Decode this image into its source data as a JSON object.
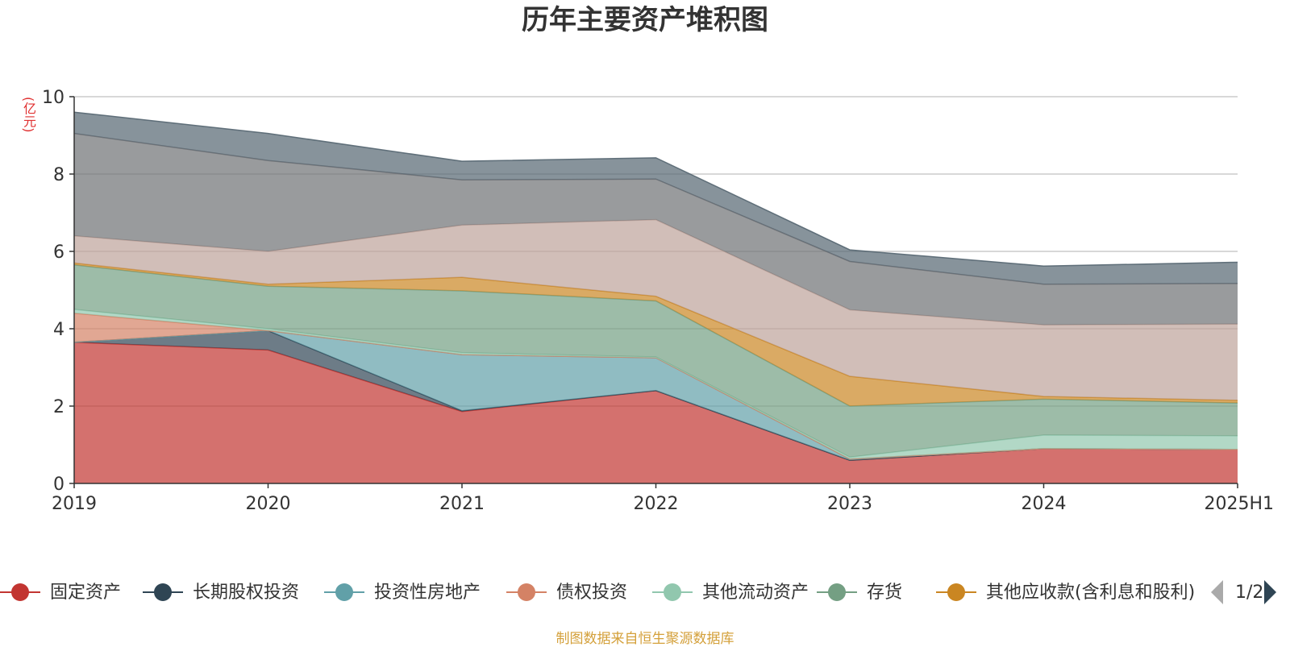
{
  "chart_data": {
    "type": "area",
    "stacked": true,
    "title": "历年主要资产堆积图",
    "y_unit": "(亿元)",
    "categories": [
      "2019",
      "2020",
      "2021",
      "2022",
      "2023",
      "2024",
      "2025H1"
    ],
    "ylim": [
      0,
      10
    ],
    "yticks": [
      0,
      2,
      4,
      6,
      8,
      10
    ],
    "grid": true,
    "legend_position": "bottom",
    "series": [
      {
        "name": "固定资产",
        "color": "#c23531",
        "values": [
          3.65,
          3.45,
          1.86,
          2.4,
          0.6,
          0.9,
          0.88
        ],
        "in_legend": true
      },
      {
        "name": "长期股权投资",
        "color": "#2f4554",
        "values": [
          0.0,
          0.5,
          0.02,
          0.0,
          0.0,
          0.0,
          0.0
        ],
        "in_legend": true
      },
      {
        "name": "投资性房地产",
        "color": "#61a0a8",
        "values": [
          0.0,
          0.0,
          1.45,
          0.85,
          0.03,
          0.0,
          0.0
        ],
        "in_legend": true
      },
      {
        "name": "债权投资",
        "color": "#d48265",
        "values": [
          0.75,
          0.0,
          0.0,
          0.0,
          0.0,
          0.0,
          0.0
        ],
        "in_legend": true
      },
      {
        "name": "其他流动资产",
        "color": "#91c7ae",
        "values": [
          0.1,
          0.05,
          0.05,
          0.02,
          0.05,
          0.35,
          0.35
        ],
        "in_legend": true
      },
      {
        "name": "存货",
        "color": "#749f83",
        "values": [
          1.15,
          1.1,
          1.6,
          1.45,
          1.32,
          0.93,
          0.85
        ],
        "in_legend": true
      },
      {
        "name": "其他应收款(含利息和股利)",
        "color": "#ca8622",
        "values": [
          0.05,
          0.05,
          0.35,
          0.12,
          0.77,
          0.07,
          0.07
        ],
        "in_legend": true
      },
      {
        "name": "",
        "color": "#bda29a",
        "values": [
          0.7,
          0.85,
          1.35,
          1.98,
          1.72,
          1.85,
          1.97
        ],
        "in_legend": false
      },
      {
        "name": "",
        "color": "#6e7074",
        "values": [
          2.65,
          2.35,
          1.17,
          1.05,
          1.25,
          1.05,
          1.05
        ],
        "in_legend": false
      },
      {
        "name": "",
        "color": "#546570",
        "values": [
          0.55,
          0.7,
          0.48,
          0.55,
          0.3,
          0.47,
          0.55
        ],
        "in_legend": false
      }
    ],
    "legend_page": "1/2",
    "source_note": "制图数据来自恒生聚源数据库"
  }
}
